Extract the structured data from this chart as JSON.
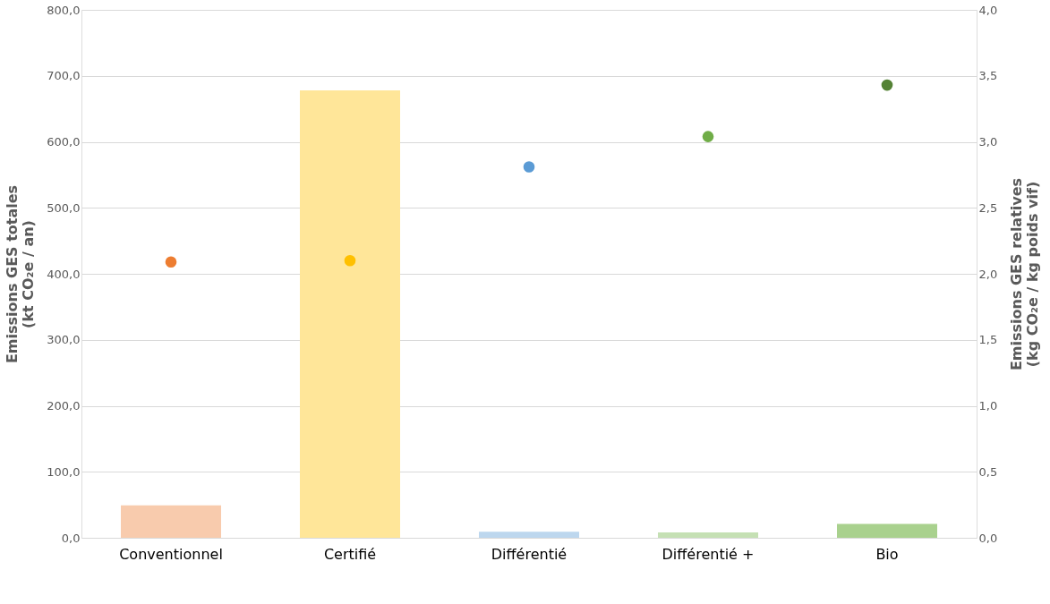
{
  "chart_data": {
    "type": "bar",
    "categories": [
      "Conventionnel",
      "Certifié",
      "Différentié",
      "Différentié +",
      "Bio"
    ],
    "ylabel": "Emissions GES totales\n(kt CO₂e / an)",
    "y2label": "Emissions GES relatives\n(kg CO₂e / kg poids vif)",
    "series": [
      {
        "colors": [
          "#f8cbad",
          "#ffe699",
          "#bdd7ee",
          "#c5e0b4",
          "#a9d18e"
        ],
        "values": [
          49,
          678,
          9,
          8,
          21
        ]
      },
      {
        "type": "scatter",
        "axis": "y2",
        "colors": [
          "#ed7d31",
          "#ffc000",
          "#5b9bd5",
          "#70ad47",
          "#548235"
        ],
        "values": [
          2.09,
          2.1,
          2.81,
          3.04,
          3.43
        ]
      }
    ],
    "ylim": [
      0,
      800
    ],
    "yticks": [
      {
        "value": 0,
        "label": "0,0"
      },
      {
        "value": 100,
        "label": "100,0"
      },
      {
        "value": 200,
        "label": "200,0"
      },
      {
        "value": 300,
        "label": "300,0"
      },
      {
        "value": 400,
        "label": "400,0"
      },
      {
        "value": 500,
        "label": "500,0"
      },
      {
        "value": 600,
        "label": "600,0"
      },
      {
        "value": 700,
        "label": "700,0"
      },
      {
        "value": 800,
        "label": "800,0"
      }
    ],
    "y2lim": [
      0,
      4
    ],
    "y2ticks": [
      {
        "value": 0,
        "label": "0,0"
      },
      {
        "value": 0.5,
        "label": "0,5"
      },
      {
        "value": 1,
        "label": "1,0"
      },
      {
        "value": 1.5,
        "label": "1,5"
      },
      {
        "value": 2,
        "label": "2,0"
      },
      {
        "value": 2.5,
        "label": "2,5"
      },
      {
        "value": 3,
        "label": "3,0"
      },
      {
        "value": 3.5,
        "label": "3,5"
      },
      {
        "value": 4,
        "label": "4,0"
      }
    ],
    "grid": "y",
    "marker": "circle"
  }
}
